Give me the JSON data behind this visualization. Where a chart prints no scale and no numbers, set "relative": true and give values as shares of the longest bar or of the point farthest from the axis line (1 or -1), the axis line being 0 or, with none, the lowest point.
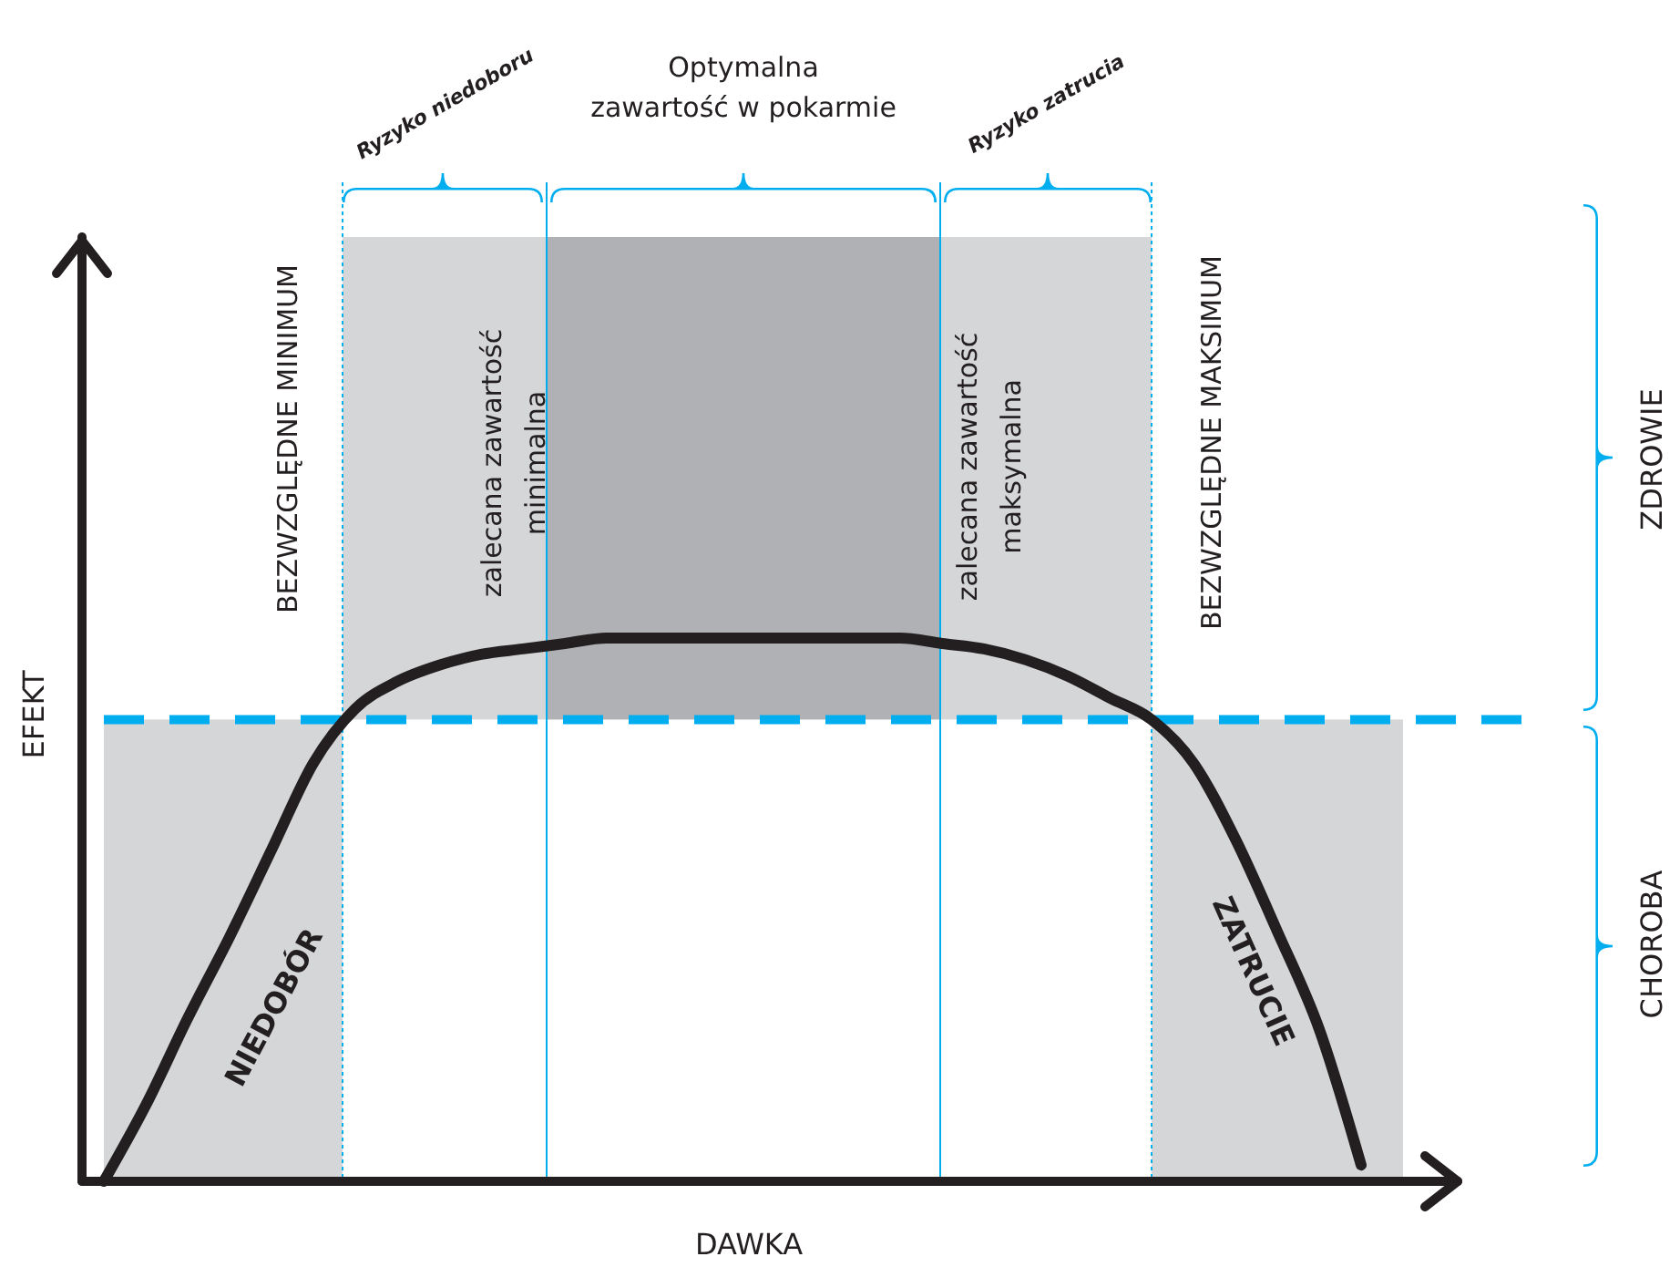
{
  "chart_data": {
    "type": "line",
    "relative": true,
    "tick_labels": false,
    "xlabel": "DAWKA",
    "ylabel": "EFEKT",
    "color": "#231f20",
    "line_style": "solid",
    "marker": "none",
    "categories": [
      null,
      null,
      null,
      null,
      null,
      null,
      null,
      null,
      null,
      null,
      null,
      null,
      null,
      null,
      null,
      null,
      null,
      null,
      null,
      null,
      null,
      null,
      null,
      null,
      null,
      null,
      null,
      null,
      null,
      null,
      null,
      null
    ],
    "values": [
      0,
      0.14,
      0.3,
      0.45,
      0.61,
      0.77,
      0.87,
      0.92,
      0.95,
      0.97,
      0.98,
      0.99,
      1,
      1,
      1,
      1,
      1,
      1,
      1,
      1,
      0.99,
      0.98,
      0.96,
      0.93,
      0.89,
      0.85,
      0.77,
      0.63,
      0.46,
      0.28,
      0.03,
      null
    ],
    "ref_lines": [
      {
        "axis": "y",
        "value": 0.85,
        "color": "#00aeef",
        "line_style": "dashed"
      }
    ],
    "annotations": [
      "Ryzyko niedoboru",
      "Optymalna zawartość w pokarmie",
      "Ryzyko zatrucia",
      "BEZWZGLĘDNE MINIMUM",
      "zalecana zawartość minimalna",
      "zalecana zawartość maksymalna",
      "BEZWZGLĘDNE MAKSIMUM",
      "NIEDOBÓR",
      "ZATRUCIE",
      "ZDROWIE",
      "CHOROBA"
    ]
  }
}
